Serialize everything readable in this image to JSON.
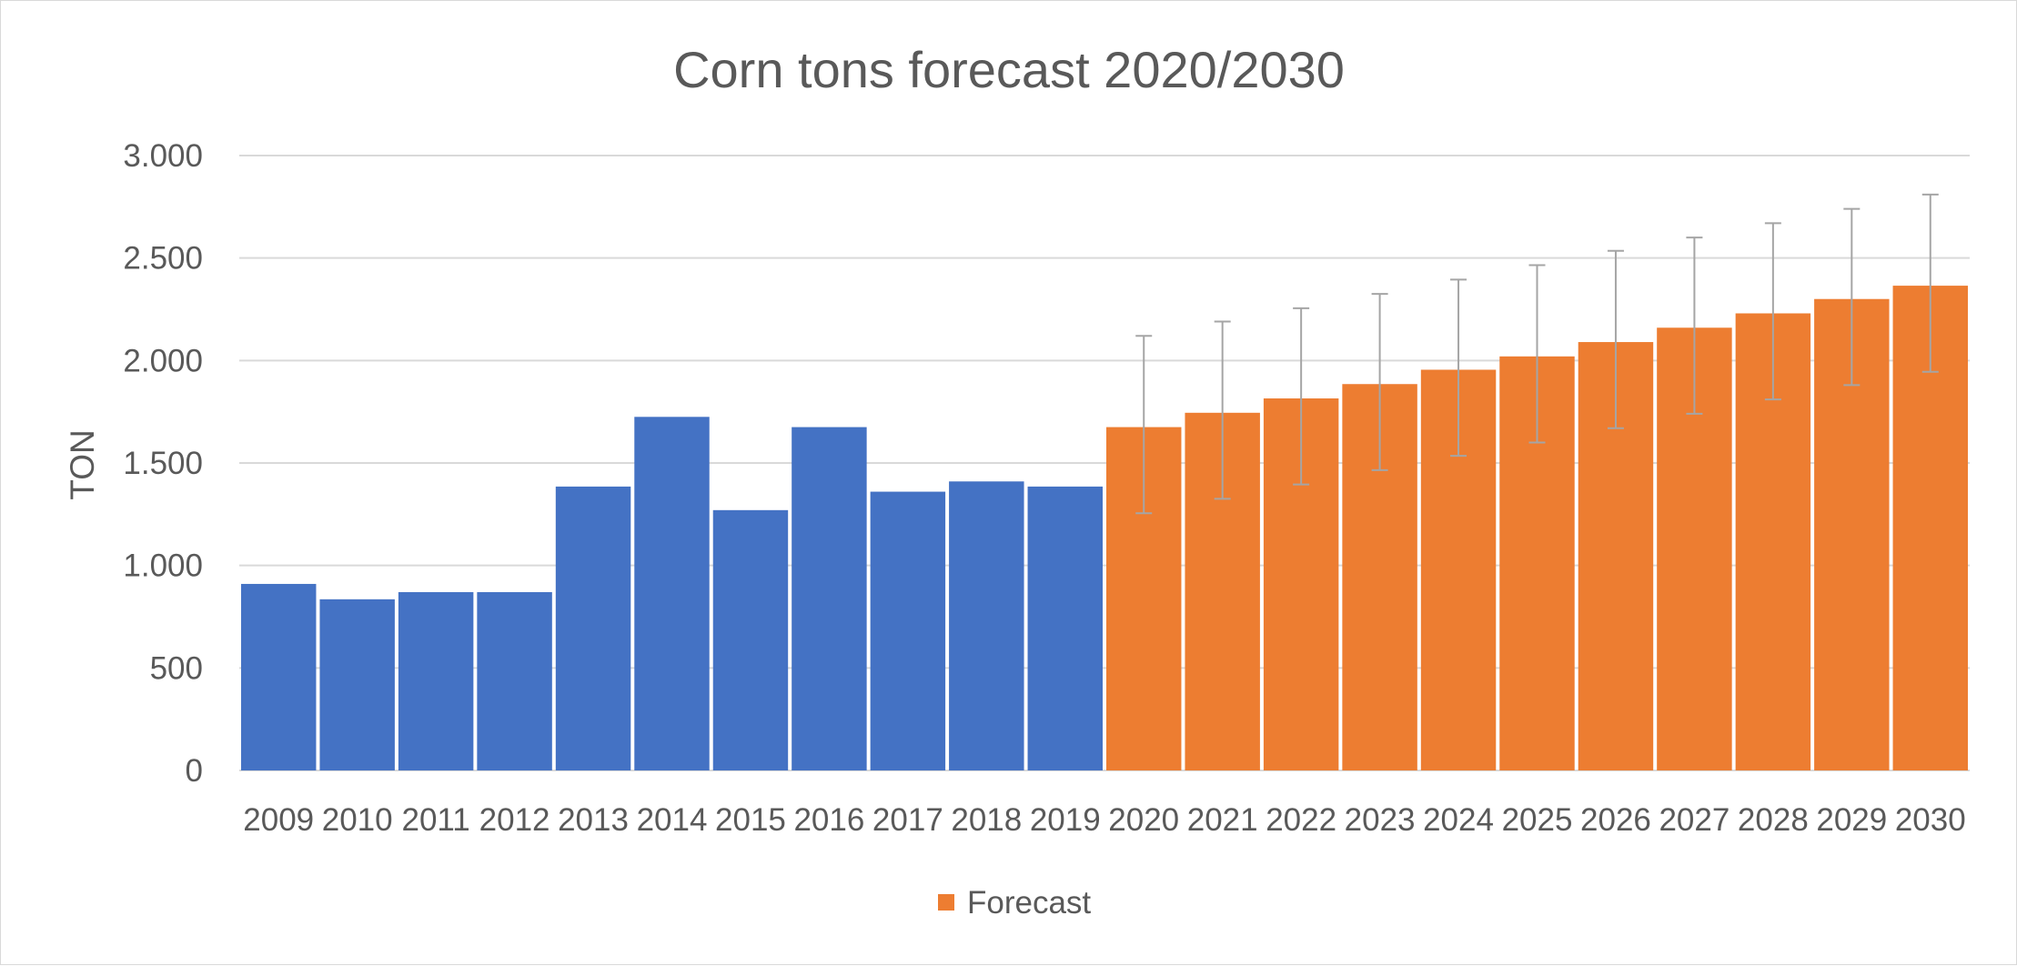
{
  "chart_data": {
    "type": "bar",
    "title": "Corn tons forecast 2020/2030",
    "xlabel": "",
    "ylabel": "TON",
    "ylim": [
      0,
      3000
    ],
    "yticks": [
      0,
      500,
      1000,
      1500,
      2000,
      2500,
      3000
    ],
    "ytick_labels": [
      "0",
      "500",
      "1.000",
      "1.500",
      "2.000",
      "2.500",
      "3.000"
    ],
    "categories": [
      "2009",
      "2010",
      "2011",
      "2012",
      "2013",
      "2014",
      "2015",
      "2016",
      "2017",
      "2018",
      "2019",
      "2020",
      "2021",
      "2022",
      "2023",
      "2024",
      "2025",
      "2026",
      "2027",
      "2028",
      "2029",
      "2030"
    ],
    "grid": true,
    "legend_position": "bottom",
    "series": [
      {
        "color": "#4472c4",
        "values": [
          910,
          835,
          870,
          870,
          1385,
          1725,
          1270,
          1675,
          1360,
          1410,
          1385,
          null,
          null,
          null,
          null,
          null,
          null,
          null,
          null,
          null,
          null,
          null
        ]
      },
      {
        "name": "Forecast",
        "color": "#ed7d31",
        "values": [
          null,
          null,
          null,
          null,
          null,
          null,
          null,
          null,
          null,
          null,
          null,
          1675,
          1745,
          1815,
          1885,
          1955,
          2020,
          2090,
          2160,
          2230,
          2300,
          2365
        ],
        "error_low": [
          null,
          null,
          null,
          null,
          null,
          null,
          null,
          null,
          null,
          null,
          null,
          1255,
          1325,
          1395,
          1465,
          1535,
          1600,
          1670,
          1740,
          1810,
          1880,
          1945
        ],
        "error_high": [
          null,
          null,
          null,
          null,
          null,
          null,
          null,
          null,
          null,
          null,
          null,
          2120,
          2190,
          2255,
          2325,
          2395,
          2465,
          2535,
          2600,
          2670,
          2740,
          2810
        ]
      }
    ],
    "error_bar_color": "#a5a5a5",
    "gridline_color": "#d9d9d9"
  }
}
